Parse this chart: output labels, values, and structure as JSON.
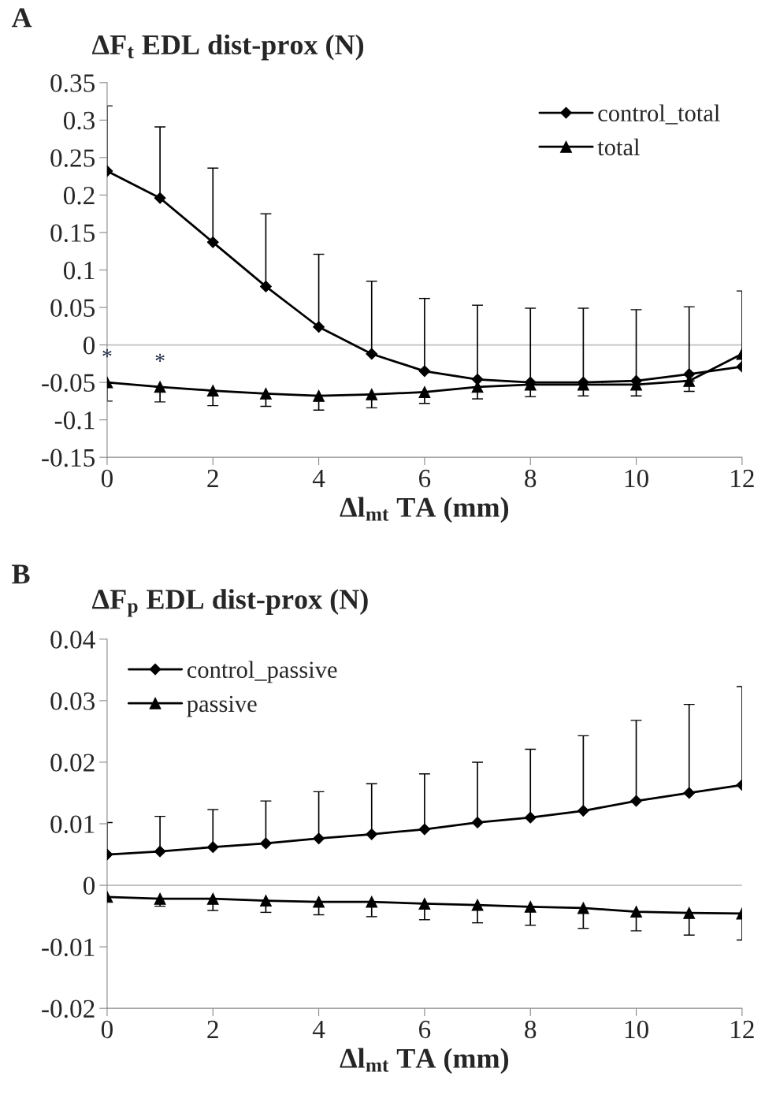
{
  "chart_data": [
    {
      "type": "line",
      "title": "A",
      "ylabel": "ΔF$_{t}$ EDL dist-prox (N)",
      "xlabel": "Δl$_{mt}$ TA (mm)",
      "x": [
        0,
        1,
        2,
        3,
        4,
        5,
        6,
        7,
        8,
        9,
        10,
        11,
        12
      ],
      "series": [
        {
          "name": "control_total",
          "color": "#000000",
          "marker": "diamond",
          "values": [
            0.232,
            0.196,
            0.137,
            0.078,
            0.024,
            -0.012,
            -0.035,
            -0.046,
            -0.05,
            -0.05,
            -0.048,
            -0.039,
            -0.029
          ],
          "errors": [
            [
              0.232,
              0.319
            ],
            [
              0.196,
              0.291
            ],
            [
              0.137,
              0.236
            ],
            [
              0.078,
              0.175
            ],
            [
              0.024,
              0.121
            ],
            [
              -0.012,
              0.085
            ],
            [
              -0.035,
              0.062
            ],
            [
              -0.046,
              0.053
            ],
            [
              -0.05,
              0.049
            ],
            [
              -0.05,
              0.049
            ],
            [
              -0.048,
              0.047
            ],
            [
              -0.039,
              0.051
            ],
            [
              -0.029,
              0.072
            ]
          ]
        },
        {
          "name": "total",
          "color": "#000000",
          "marker": "triangle",
          "values": [
            -0.05,
            -0.056,
            -0.061,
            -0.065,
            -0.068,
            -0.066,
            -0.063,
            -0.056,
            -0.053,
            -0.053,
            -0.053,
            -0.048,
            -0.012
          ],
          "errors": [
            [
              -0.075,
              -0.05
            ],
            [
              -0.076,
              -0.056
            ],
            [
              -0.081,
              -0.061
            ],
            [
              -0.082,
              -0.065
            ],
            [
              -0.087,
              -0.068
            ],
            [
              -0.084,
              -0.066
            ],
            [
              -0.078,
              -0.063
            ],
            [
              -0.072,
              -0.056
            ],
            [
              -0.069,
              -0.053
            ],
            [
              -0.068,
              -0.053
            ],
            [
              -0.068,
              -0.053
            ],
            [
              -0.062,
              -0.048
            ],
            null
          ]
        }
      ],
      "annotations": [
        {
          "text": "*",
          "x": 0,
          "y": -0.05
        },
        {
          "text": "*",
          "x": 1,
          "y": -0.056
        }
      ],
      "ref_lines": [
        {
          "axis": "y",
          "value": 0,
          "color": "#c0c0c0"
        }
      ],
      "xlim": [
        0,
        12
      ],
      "xticks": [
        0,
        2,
        4,
        6,
        8,
        10,
        12
      ],
      "ylim": [
        -0.15,
        0.35
      ],
      "yticks": [
        -0.15,
        -0.1,
        -0.05,
        0,
        0.05,
        0.1,
        0.15,
        0.2,
        0.25,
        0.3,
        0.35
      ],
      "grid": false,
      "legend": "top right"
    },
    {
      "type": "line",
      "title": "B",
      "ylabel": "ΔF$_{p}$ EDL dist-prox (N)",
      "xlabel": "Δl$_{mt}$ TA (mm)",
      "x": [
        0,
        1,
        2,
        3,
        4,
        5,
        6,
        7,
        8,
        9,
        10,
        11,
        12
      ],
      "series": [
        {
          "name": "control_passive",
          "color": "#000000",
          "marker": "diamond",
          "values": [
            0.005,
            0.0055,
            0.0062,
            0.0068,
            0.0076,
            0.0083,
            0.0091,
            0.0102,
            0.011,
            0.0121,
            0.0137,
            0.015,
            0.0163
          ],
          "errors": [
            [
              0.005,
              0.0102
            ],
            [
              0.0055,
              0.0112
            ],
            [
              0.0062,
              0.0123
            ],
            [
              0.0068,
              0.0137
            ],
            [
              0.0076,
              0.0152
            ],
            [
              0.0083,
              0.0165
            ],
            [
              0.0091,
              0.0181
            ],
            [
              0.0102,
              0.02
            ],
            [
              0.011,
              0.0221
            ],
            [
              0.0121,
              0.0243
            ],
            [
              0.0137,
              0.0268
            ],
            [
              0.015,
              0.0294
            ],
            [
              0.0163,
              0.0323
            ]
          ]
        },
        {
          "name": "passive",
          "color": "#000000",
          "marker": "triangle",
          "values": [
            -0.0019,
            -0.0022,
            -0.0022,
            -0.0025,
            -0.0027,
            -0.0027,
            -0.003,
            -0.0032,
            -0.0035,
            -0.0037,
            -0.0043,
            -0.0045,
            -0.0046
          ],
          "errors": [
            null,
            [
              -0.0034,
              -0.0022
            ],
            [
              -0.0041,
              -0.0022
            ],
            [
              -0.0044,
              -0.0025
            ],
            [
              -0.0048,
              -0.0027
            ],
            [
              -0.0051,
              -0.0027
            ],
            [
              -0.0056,
              -0.003
            ],
            [
              -0.0061,
              -0.0032
            ],
            [
              -0.0065,
              -0.0035
            ],
            [
              -0.007,
              -0.0037
            ],
            [
              -0.0074,
              -0.0043
            ],
            [
              -0.0081,
              -0.0045
            ],
            [
              -0.0089,
              -0.0046
            ]
          ]
        }
      ],
      "ref_lines": [
        {
          "axis": "y",
          "value": 0,
          "color": "#c0c0c0"
        }
      ],
      "xlim": [
        0,
        12
      ],
      "xticks": [
        0,
        2,
        4,
        6,
        8,
        10,
        12
      ],
      "ylim": [
        -0.02,
        0.04
      ],
      "yticks": [
        -0.02,
        -0.01,
        0,
        0.01,
        0.02,
        0.03,
        0.04
      ],
      "grid": false,
      "legend": "top left"
    }
  ]
}
